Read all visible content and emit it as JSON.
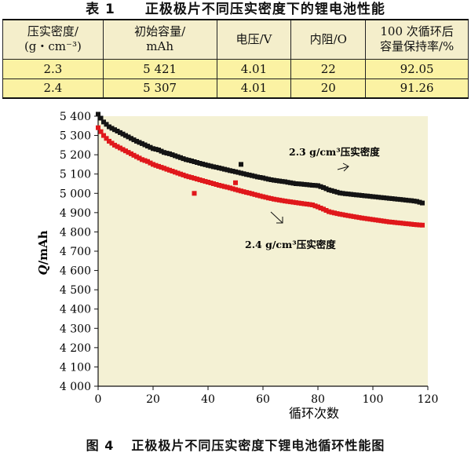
{
  "table": {
    "number": "表 1",
    "title": "正极极片不同压实密度下的锂电池性能",
    "headers": [
      [
        "压实密度/",
        "(g・cm⁻³)"
      ],
      [
        "初始容量/",
        "mAh"
      ],
      [
        "电压/V"
      ],
      [
        "内阻/O"
      ],
      [
        "100 次循环后",
        "容量保持率/%"
      ]
    ],
    "rows": [
      [
        "2.3",
        "5 421",
        "4.01",
        "22",
        "92.05"
      ],
      [
        "2.4",
        "5 307",
        "4.01",
        "20",
        "91.26"
      ]
    ]
  },
  "figure": {
    "number": "图 4",
    "title": "正极极片不同压实密度下锂电池循环性能图",
    "plot_bg": "#f4f1d4",
    "colors": {
      "black_series": "#141414",
      "red_series": "#e0181b"
    }
  },
  "chart_data": {
    "type": "scatter",
    "title": "",
    "xlabel": "循环次数",
    "ylabel_italic": "Q",
    "ylabel_unit": "/mAh",
    "xlim": [
      0,
      120
    ],
    "ylim": [
      4000,
      5400
    ],
    "xticks": [
      "0",
      "20",
      "40",
      "60",
      "80",
      "100",
      "120"
    ],
    "yticks": [
      "4 000",
      "4 100",
      "4 200",
      "4 300",
      "4 400",
      "4 500",
      "4 600",
      "4 700",
      "4 800",
      "4 900",
      "5 000",
      "5 100",
      "5 200",
      "5 300",
      "5 400"
    ],
    "annotations": [
      {
        "label": "2.3 g/cm³压实密度",
        "series": "2.3"
      },
      {
        "label": "2.4 g/cm³压实密度",
        "series": "2.4"
      }
    ],
    "series": [
      {
        "name": "2.3 g/cm³压实密度",
        "color": "#141414",
        "x": [
          0,
          2,
          4,
          6,
          8,
          10,
          12,
          14,
          16,
          18,
          20,
          22,
          24,
          26,
          28,
          30,
          32,
          34,
          36,
          38,
          40,
          42,
          44,
          46,
          48,
          50,
          52,
          54,
          56,
          58,
          60,
          62,
          64,
          66,
          68,
          70,
          72,
          74,
          76,
          78,
          80,
          82,
          84,
          86,
          88,
          90,
          92,
          94,
          96,
          98,
          100,
          102,
          104,
          106,
          108,
          110,
          112,
          114,
          116,
          118
        ],
        "y": [
          5410,
          5370,
          5345,
          5330,
          5315,
          5300,
          5285,
          5270,
          5258,
          5245,
          5232,
          5225,
          5212,
          5205,
          5195,
          5185,
          5175,
          5168,
          5160,
          5152,
          5145,
          5138,
          5132,
          5125,
          5118,
          5112,
          5105,
          5098,
          5092,
          5085,
          5080,
          5073,
          5068,
          5064,
          5060,
          5055,
          5050,
          5048,
          5045,
          5042,
          5040,
          5030,
          5018,
          5010,
          5002,
          4998,
          4995,
          4992,
          4989,
          4986,
          4983,
          4980,
          4977,
          4974,
          4971,
          4968,
          4965,
          4962,
          4958,
          4950
        ]
      },
      {
        "name": "2.4 g/cm³压实密度",
        "color": "#e0181b",
        "x": [
          0,
          2,
          4,
          6,
          8,
          10,
          12,
          14,
          16,
          18,
          20,
          22,
          24,
          26,
          28,
          30,
          32,
          34,
          36,
          38,
          40,
          42,
          44,
          46,
          48,
          50,
          52,
          54,
          56,
          58,
          60,
          62,
          64,
          66,
          68,
          70,
          72,
          74,
          76,
          78,
          80,
          82,
          84,
          86,
          88,
          90,
          92,
          94,
          96,
          98,
          100,
          102,
          104,
          106,
          108,
          110,
          112,
          114,
          116,
          118
        ],
        "y": [
          5340,
          5300,
          5270,
          5250,
          5235,
          5220,
          5205,
          5190,
          5175,
          5165,
          5150,
          5140,
          5130,
          5120,
          5110,
          5100,
          5090,
          5082,
          5074,
          5066,
          5058,
          5050,
          5042,
          5035,
          5028,
          5020,
          5012,
          5005,
          4998,
          4990,
          4983,
          4976,
          4970,
          4965,
          4960,
          4956,
          4952,
          4948,
          4944,
          4940,
          4930,
          4918,
          4905,
          4898,
          4892,
          4887,
          4882,
          4877,
          4872,
          4868,
          4864,
          4860,
          4856,
          4852,
          4849,
          4846,
          4843,
          4840,
          4837,
          4835
        ]
      }
    ],
    "outliers": [
      {
        "series": "2.4",
        "x": 35,
        "y": 5000
      },
      {
        "series": "2.4",
        "x": 50,
        "y": 5055
      },
      {
        "series": "2.3",
        "x": 52,
        "y": 5150
      }
    ]
  }
}
